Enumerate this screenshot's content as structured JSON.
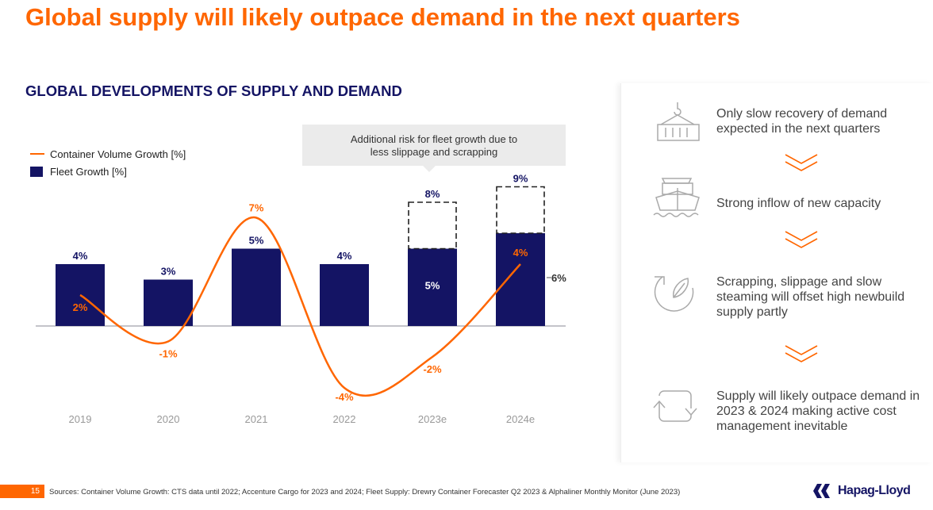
{
  "title": "Global supply will likely outpace demand in the next quarters",
  "subtitle": "GLOBAL DEVELOPMENTS OF SUPPLY AND DEMAND",
  "callout": {
    "line1": "Additional risk for fleet growth due to",
    "line2": "less slippage and scrapping"
  },
  "chart_data": {
    "type": "bar",
    "categories": [
      "2019",
      "2020",
      "2021",
      "2022",
      "2023e",
      "2024e"
    ],
    "series": [
      {
        "name": "Fleet Growth [%]",
        "type": "bar",
        "values": [
          4,
          3,
          5,
          4,
          5,
          6
        ],
        "labels": [
          "4%",
          "3%",
          "5%",
          "4%",
          "5%",
          "6%"
        ],
        "color": "#141464"
      },
      {
        "name": "Fleet Growth upside risk",
        "type": "bar-dashed",
        "values": [
          null,
          null,
          null,
          null,
          8,
          9
        ],
        "labels": [
          "",
          "",
          "",
          "",
          "8%",
          "9%"
        ]
      },
      {
        "name": "Container Volume Growth [%]",
        "type": "line",
        "values": [
          2,
          -1,
          7,
          -4,
          -2,
          4
        ],
        "labels": [
          "2%",
          "-1%",
          "7%",
          "-4%",
          "-2%",
          "4%"
        ],
        "color": "#FF6600"
      }
    ],
    "legend": {
      "position": "top-left",
      "entries": [
        "Container Volume Growth [%]",
        "Fleet Growth [%]"
      ]
    },
    "grid": false
  },
  "panel": {
    "items": [
      {
        "icon": "container-crane-icon",
        "text": "Only slow recovery of demand expected in the next quarters"
      },
      {
        "icon": "ship-icon",
        "text": "Strong inflow of new capacity"
      },
      {
        "icon": "recycle-leaf-icon",
        "text": "Scrapping, slippage and slow steaming will offset high newbuild supply partly"
      },
      {
        "icon": "cycle-arrows-icon",
        "text": "Supply will likely outpace demand in 2023 & 2024 making active cost management inevitable"
      }
    ],
    "accent": "#FF6600"
  },
  "footer": {
    "page": "15",
    "sources": "Sources: Container Volume Growth: CTS data until 2022; Accenture Cargo for 2023 and 2024; Fleet Supply: Drewry Container Forecaster Q2 2023 & Alphaliner Monthly Monitor (June 2023)",
    "logo": "Hapag-Lloyd"
  }
}
